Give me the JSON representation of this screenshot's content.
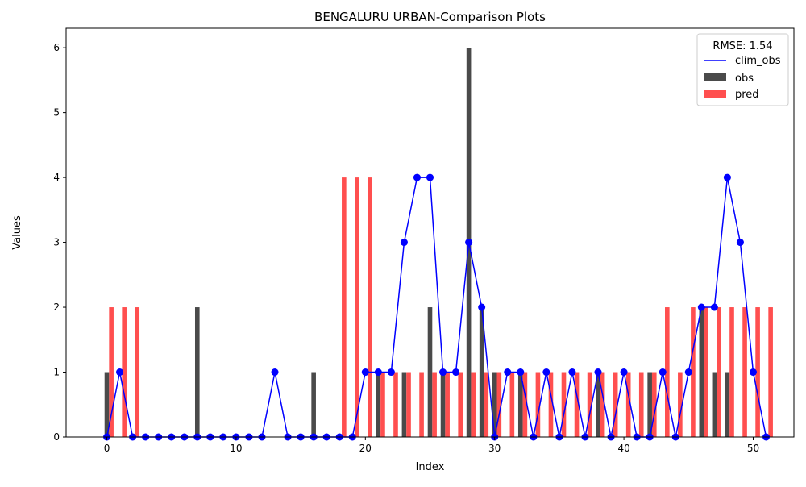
{
  "chart_data": {
    "type": "bar",
    "title": "BENGALURU URBAN-Comparison Plots",
    "xlabel": "Index",
    "ylabel": "Values",
    "xlim": [
      -3.15,
      53.15
    ],
    "ylim": [
      0,
      6.3
    ],
    "x_ticks": [
      0,
      10,
      20,
      30,
      40,
      50
    ],
    "y_ticks": [
      0,
      1,
      2,
      3,
      4,
      5,
      6
    ],
    "grid": false,
    "legend": {
      "title": "RMSE: 1.54",
      "placement": "top-right",
      "entries": [
        "clim_obs",
        "obs",
        "pred"
      ]
    },
    "series": [
      {
        "name": "obs",
        "kind": "bar",
        "color": "#4a4a4a",
        "values": [
          1,
          0,
          0,
          0,
          0,
          0,
          0,
          2,
          0,
          0,
          0,
          0,
          0,
          0,
          0,
          0,
          1,
          0,
          0,
          0,
          0,
          1,
          0,
          1,
          0,
          2,
          1,
          0,
          6,
          2,
          1,
          0,
          1,
          0,
          0,
          0,
          0,
          0,
          1,
          0,
          0,
          0,
          1,
          0,
          0,
          0,
          2,
          1,
          1,
          0,
          0,
          0
        ]
      },
      {
        "name": "pred",
        "kind": "bar",
        "color": "#ff4f4f",
        "values": [
          2,
          2,
          2,
          0,
          0,
          0,
          0,
          0,
          0,
          0,
          0,
          0,
          0,
          0,
          0,
          0,
          0,
          0,
          4,
          4,
          4,
          1,
          1,
          1,
          1,
          1,
          1,
          1,
          1,
          1,
          1,
          1,
          1,
          1,
          1,
          1,
          1,
          1,
          1,
          1,
          1,
          1,
          1,
          2,
          1,
          2,
          2,
          2,
          2,
          2,
          2,
          2
        ]
      },
      {
        "name": "clim_obs",
        "kind": "line",
        "color": "#0000ff",
        "values": [
          0,
          1,
          0,
          0,
          0,
          0,
          0,
          0,
          0,
          0,
          0,
          0,
          0,
          1,
          0,
          0,
          0,
          0,
          0,
          0,
          1,
          1,
          1,
          3,
          4,
          4,
          1,
          1,
          3,
          2,
          0,
          1,
          1,
          0,
          1,
          0,
          1,
          0,
          1,
          0,
          1,
          0,
          0,
          1,
          0,
          1,
          2,
          2,
          4,
          3,
          1,
          0
        ]
      }
    ]
  }
}
